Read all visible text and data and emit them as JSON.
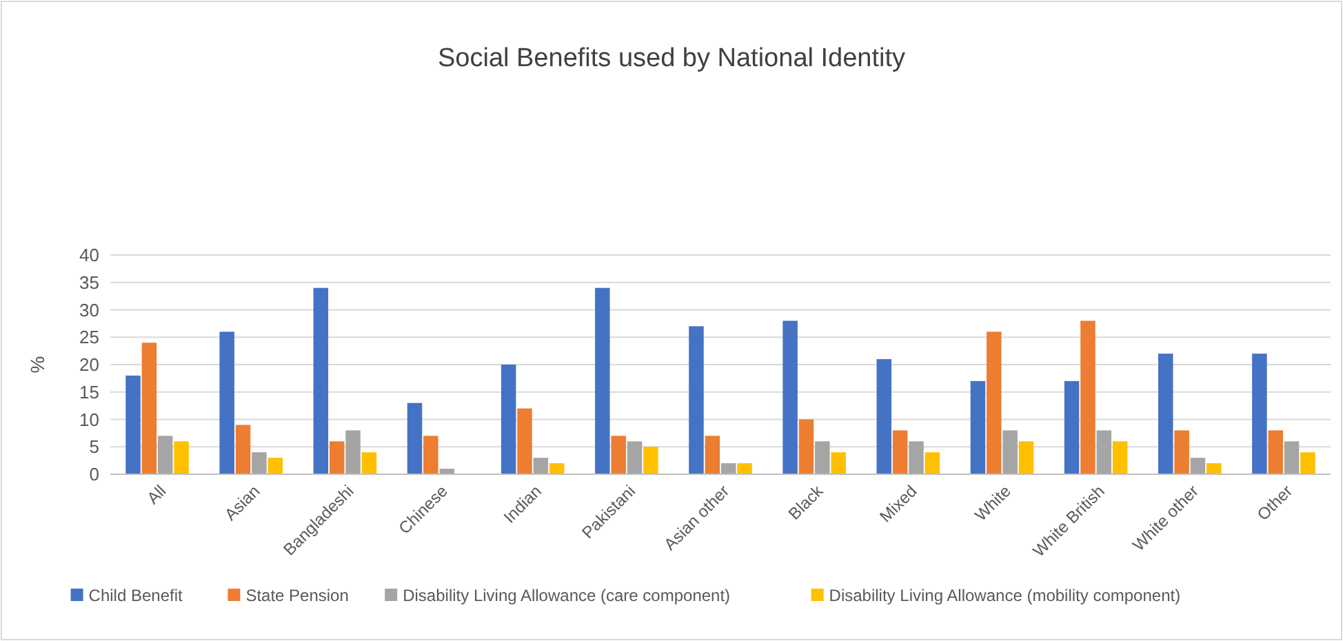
{
  "chart_data": {
    "type": "bar",
    "title": "Social Benefits used by National Identity",
    "ylabel": "%",
    "categories": [
      "All",
      "Asian",
      "Bangladeshi",
      "Chinese",
      "Indian",
      "Pakistani",
      "Asian other",
      "Black",
      "Mixed",
      "White",
      "White British",
      "White other",
      "Other"
    ],
    "series": [
      {
        "name": "Child Benefit",
        "color": "#4472c4",
        "values": [
          18,
          26,
          34,
          13,
          20,
          34,
          27,
          28,
          21,
          17,
          17,
          22,
          22
        ]
      },
      {
        "name": "State Pension",
        "color": "#ed7d31",
        "values": [
          24,
          9,
          6,
          7,
          12,
          7,
          7,
          10,
          8,
          26,
          28,
          8,
          8
        ]
      },
      {
        "name": "Disability Living Allowance (care component)",
        "color": "#a5a5a5",
        "values": [
          7,
          4,
          8,
          1,
          3,
          6,
          2,
          6,
          6,
          8,
          8,
          3,
          6
        ]
      },
      {
        "name": "Disability Living Allowance (mobility component)",
        "color": "#ffc000",
        "values": [
          6,
          3,
          4,
          0,
          2,
          5,
          2,
          4,
          4,
          6,
          6,
          2,
          4
        ]
      }
    ],
    "ylim": [
      0,
      40
    ],
    "yticks": [
      0,
      5,
      10,
      15,
      20,
      25,
      30,
      35,
      40
    ],
    "grid": "y",
    "legend": "bottom"
  }
}
